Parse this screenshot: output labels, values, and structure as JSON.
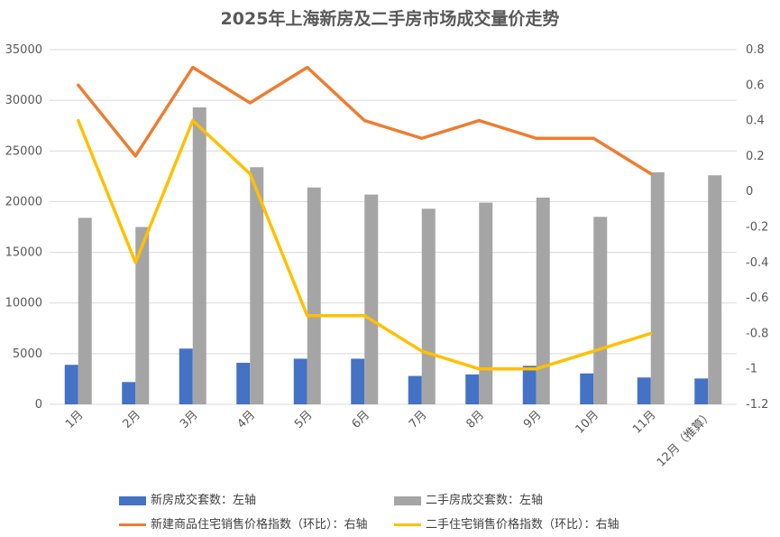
{
  "chart_data": {
    "type": "bar+line",
    "title": "2025年上海新房及二手房市场成交量价走势",
    "categories": [
      "1月",
      "2月",
      "3月",
      "4月",
      "5月",
      "6月",
      "7月",
      "8月",
      "9月",
      "10月",
      "11月",
      "12月（推算）"
    ],
    "left_axis": {
      "min": 0,
      "max": 35000,
      "step": 5000,
      "ticks": [
        "0",
        "5000",
        "10000",
        "15000",
        "20000",
        "25000",
        "30000",
        "35000"
      ]
    },
    "right_axis": {
      "min": -1.2,
      "max": 0.8,
      "step": 0.2,
      "ticks": [
        "0.8",
        "0.6",
        "0.4",
        "0.2",
        "0",
        "-0.2",
        "-0.4",
        "-0.6",
        "-0.8",
        "-1",
        "-1.2"
      ]
    },
    "series": [
      {
        "name": "新房成交套数：左轴",
        "kind": "bar",
        "axis": "left",
        "color": "#4472C4",
        "values": [
          3900,
          2200,
          5500,
          4100,
          4500,
          4500,
          2800,
          2950,
          3800,
          3050,
          2650,
          2550
        ]
      },
      {
        "name": "二手房成交套数：左轴",
        "kind": "bar",
        "axis": "left",
        "color": "#A5A5A5",
        "values": [
          18400,
          17500,
          29300,
          23400,
          21400,
          20700,
          19300,
          19900,
          20400,
          18500,
          22900,
          22600
        ]
      },
      {
        "name": "新建商品住宅销售价格指数（环比）：右轴",
        "kind": "line",
        "axis": "right",
        "color": "#ED7D31",
        "values": [
          0.6,
          0.2,
          0.7,
          0.5,
          0.7,
          0.4,
          0.3,
          0.4,
          0.3,
          0.3,
          0.1,
          null
        ]
      },
      {
        "name": "二手住宅销售价格指数（环比）：右轴",
        "kind": "line",
        "axis": "right",
        "color": "#FFC000",
        "values": [
          0.4,
          -0.4,
          0.4,
          0.1,
          -0.7,
          -0.7,
          -0.9,
          -1.0,
          -1.0,
          -0.9,
          -0.8,
          null
        ]
      }
    ],
    "grid": true,
    "legend_position": "bottom"
  }
}
